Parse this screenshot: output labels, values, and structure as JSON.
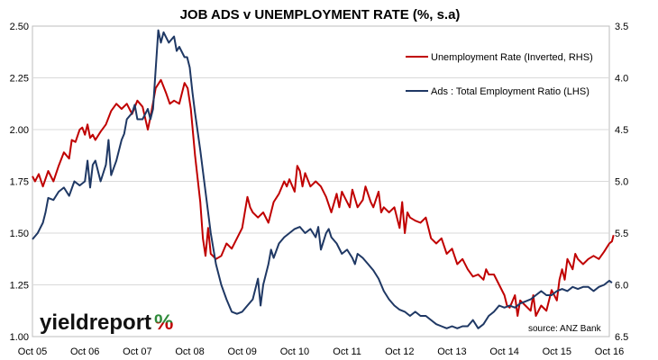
{
  "chart_data": {
    "type": "line",
    "title": "JOB ADS v UNEMPLOYMENT RATE (%, s.a)",
    "categories": [
      "Oct 05",
      "Oct 06",
      "Oct 07",
      "Oct 08",
      "Oct 09",
      "Oct 10",
      "Oct 11",
      "Oct 12",
      "Oct 13",
      "Oct 14",
      "Oct 15",
      "Oct 16"
    ],
    "y_left": {
      "min": 1.0,
      "max": 2.5,
      "ticks": [
        "1.00",
        "1.25",
        "1.50",
        "1.75",
        "2.00",
        "2.25",
        "2.50"
      ]
    },
    "y_right": {
      "min": 3.5,
      "max": 6.5,
      "inverted": true,
      "ticks": [
        "3.5",
        "4.0",
        "4.5",
        "5.0",
        "5.5",
        "6.0",
        "6.5"
      ]
    },
    "grid": "horizontal",
    "legend_position": "top-right",
    "series": [
      {
        "name": "Unemployment Rate (Inverted, RHS)",
        "axis": "right",
        "color": "#c00000",
        "points": [
          [
            0.0,
            4.95
          ],
          [
            0.05,
            5.0
          ],
          [
            0.12,
            4.93
          ],
          [
            0.2,
            5.05
          ],
          [
            0.3,
            4.9
          ],
          [
            0.4,
            5.0
          ],
          [
            0.5,
            4.85
          ],
          [
            0.6,
            4.72
          ],
          [
            0.7,
            4.78
          ],
          [
            0.75,
            4.6
          ],
          [
            0.82,
            4.62
          ],
          [
            0.9,
            4.5
          ],
          [
            0.95,
            4.48
          ],
          [
            1.0,
            4.55
          ],
          [
            1.05,
            4.45
          ],
          [
            1.1,
            4.58
          ],
          [
            1.15,
            4.55
          ],
          [
            1.2,
            4.6
          ],
          [
            1.3,
            4.52
          ],
          [
            1.4,
            4.45
          ],
          [
            1.5,
            4.32
          ],
          [
            1.6,
            4.25
          ],
          [
            1.7,
            4.3
          ],
          [
            1.8,
            4.25
          ],
          [
            1.9,
            4.35
          ],
          [
            2.0,
            4.22
          ],
          [
            2.1,
            4.28
          ],
          [
            2.2,
            4.5
          ],
          [
            2.25,
            4.38
          ],
          [
            2.35,
            4.1
          ],
          [
            2.45,
            4.02
          ],
          [
            2.55,
            4.15
          ],
          [
            2.62,
            4.25
          ],
          [
            2.7,
            4.22
          ],
          [
            2.8,
            4.25
          ],
          [
            2.9,
            4.05
          ],
          [
            2.96,
            4.1
          ],
          [
            3.02,
            4.3
          ],
          [
            3.1,
            4.75
          ],
          [
            3.2,
            5.2
          ],
          [
            3.25,
            5.55
          ],
          [
            3.3,
            5.72
          ],
          [
            3.35,
            5.45
          ],
          [
            3.4,
            5.7
          ],
          [
            3.5,
            5.75
          ],
          [
            3.6,
            5.72
          ],
          [
            3.7,
            5.6
          ],
          [
            3.8,
            5.65
          ],
          [
            3.9,
            5.55
          ],
          [
            4.0,
            5.45
          ],
          [
            4.05,
            5.3
          ],
          [
            4.1,
            5.15
          ],
          [
            4.15,
            5.25
          ],
          [
            4.2,
            5.3
          ],
          [
            4.3,
            5.35
          ],
          [
            4.4,
            5.3
          ],
          [
            4.5,
            5.4
          ],
          [
            4.6,
            5.2
          ],
          [
            4.7,
            5.12
          ],
          [
            4.8,
            5.0
          ],
          [
            4.85,
            5.05
          ],
          [
            4.9,
            4.98
          ],
          [
            5.0,
            5.1
          ],
          [
            5.05,
            4.85
          ],
          [
            5.1,
            4.9
          ],
          [
            5.15,
            5.05
          ],
          [
            5.2,
            4.92
          ],
          [
            5.3,
            5.05
          ],
          [
            5.4,
            5.0
          ],
          [
            5.5,
            5.05
          ],
          [
            5.6,
            5.15
          ],
          [
            5.7,
            5.3
          ],
          [
            5.8,
            5.12
          ],
          [
            5.85,
            5.25
          ],
          [
            5.9,
            5.1
          ],
          [
            5.95,
            5.15
          ],
          [
            6.05,
            5.25
          ],
          [
            6.1,
            5.08
          ],
          [
            6.2,
            5.25
          ],
          [
            6.3,
            5.18
          ],
          [
            6.35,
            5.05
          ],
          [
            6.45,
            5.2
          ],
          [
            6.5,
            5.25
          ],
          [
            6.6,
            5.1
          ],
          [
            6.65,
            5.3
          ],
          [
            6.7,
            5.25
          ],
          [
            6.8,
            5.3
          ],
          [
            6.9,
            5.25
          ],
          [
            7.0,
            5.45
          ],
          [
            7.05,
            5.2
          ],
          [
            7.1,
            5.5
          ],
          [
            7.15,
            5.3
          ],
          [
            7.2,
            5.35
          ],
          [
            7.3,
            5.38
          ],
          [
            7.4,
            5.4
          ],
          [
            7.5,
            5.35
          ],
          [
            7.6,
            5.55
          ],
          [
            7.7,
            5.6
          ],
          [
            7.8,
            5.55
          ],
          [
            7.9,
            5.7
          ],
          [
            8.0,
            5.65
          ],
          [
            8.1,
            5.8
          ],
          [
            8.2,
            5.75
          ],
          [
            8.3,
            5.85
          ],
          [
            8.4,
            5.92
          ],
          [
            8.5,
            5.9
          ],
          [
            8.6,
            5.95
          ],
          [
            8.65,
            5.85
          ],
          [
            8.7,
            5.9
          ],
          [
            8.8,
            5.9
          ],
          [
            8.9,
            6.0
          ],
          [
            9.0,
            6.1
          ],
          [
            9.05,
            6.2
          ],
          [
            9.1,
            6.22
          ],
          [
            9.2,
            6.1
          ],
          [
            9.25,
            6.3
          ],
          [
            9.3,
            6.15
          ],
          [
            9.4,
            6.2
          ],
          [
            9.5,
            6.25
          ],
          [
            9.55,
            6.1
          ],
          [
            9.6,
            6.3
          ],
          [
            9.7,
            6.2
          ],
          [
            9.8,
            6.25
          ],
          [
            9.9,
            6.05
          ],
          [
            10.0,
            6.15
          ],
          [
            10.05,
            5.95
          ],
          [
            10.1,
            5.85
          ],
          [
            10.15,
            5.95
          ],
          [
            10.2,
            5.75
          ],
          [
            10.3,
            5.85
          ],
          [
            10.35,
            5.7
          ],
          [
            10.4,
            5.75
          ],
          [
            10.5,
            5.8
          ],
          [
            10.6,
            5.75
          ],
          [
            10.7,
            5.72
          ],
          [
            10.8,
            5.75
          ],
          [
            10.9,
            5.68
          ],
          [
            11.0,
            5.6
          ],
          [
            11.05,
            5.58
          ],
          [
            11.08,
            5.52
          ]
        ]
      },
      {
        "name": "Ads : Total Employment Ratio (LHS)",
        "axis": "left",
        "color": "#1f3864",
        "points": [
          [
            0.0,
            1.47
          ],
          [
            0.1,
            1.5
          ],
          [
            0.2,
            1.55
          ],
          [
            0.25,
            1.6
          ],
          [
            0.3,
            1.67
          ],
          [
            0.4,
            1.66
          ],
          [
            0.5,
            1.7
          ],
          [
            0.6,
            1.72
          ],
          [
            0.7,
            1.68
          ],
          [
            0.8,
            1.75
          ],
          [
            0.9,
            1.73
          ],
          [
            1.0,
            1.75
          ],
          [
            1.05,
            1.85
          ],
          [
            1.1,
            1.72
          ],
          [
            1.15,
            1.83
          ],
          [
            1.2,
            1.85
          ],
          [
            1.3,
            1.75
          ],
          [
            1.4,
            1.83
          ],
          [
            1.45,
            1.95
          ],
          [
            1.5,
            1.78
          ],
          [
            1.6,
            1.85
          ],
          [
            1.7,
            1.95
          ],
          [
            1.75,
            1.98
          ],
          [
            1.8,
            2.05
          ],
          [
            1.9,
            2.08
          ],
          [
            1.95,
            2.12
          ],
          [
            2.0,
            2.05
          ],
          [
            2.1,
            2.05
          ],
          [
            2.2,
            2.1
          ],
          [
            2.25,
            2.05
          ],
          [
            2.3,
            2.1
          ],
          [
            2.4,
            2.48
          ],
          [
            2.45,
            2.42
          ],
          [
            2.5,
            2.47
          ],
          [
            2.6,
            2.42
          ],
          [
            2.7,
            2.45
          ],
          [
            2.75,
            2.38
          ],
          [
            2.8,
            2.4
          ],
          [
            2.9,
            2.35
          ],
          [
            2.95,
            2.35
          ],
          [
            3.0,
            2.3
          ],
          [
            3.05,
            2.18
          ],
          [
            3.1,
            2.08
          ],
          [
            3.2,
            1.9
          ],
          [
            3.3,
            1.7
          ],
          [
            3.4,
            1.5
          ],
          [
            3.5,
            1.35
          ],
          [
            3.6,
            1.25
          ],
          [
            3.7,
            1.18
          ],
          [
            3.8,
            1.12
          ],
          [
            3.9,
            1.11
          ],
          [
            4.0,
            1.12
          ],
          [
            4.1,
            1.15
          ],
          [
            4.2,
            1.18
          ],
          [
            4.3,
            1.28
          ],
          [
            4.35,
            1.15
          ],
          [
            4.4,
            1.25
          ],
          [
            4.5,
            1.35
          ],
          [
            4.55,
            1.42
          ],
          [
            4.6,
            1.38
          ],
          [
            4.7,
            1.45
          ],
          [
            4.8,
            1.48
          ],
          [
            4.9,
            1.5
          ],
          [
            5.0,
            1.52
          ],
          [
            5.1,
            1.53
          ],
          [
            5.2,
            1.5
          ],
          [
            5.3,
            1.52
          ],
          [
            5.4,
            1.48
          ],
          [
            5.45,
            1.53
          ],
          [
            5.5,
            1.42
          ],
          [
            5.55,
            1.46
          ],
          [
            5.6,
            1.5
          ],
          [
            5.65,
            1.52
          ],
          [
            5.7,
            1.48
          ],
          [
            5.8,
            1.45
          ],
          [
            5.9,
            1.4
          ],
          [
            6.0,
            1.42
          ],
          [
            6.1,
            1.38
          ],
          [
            6.15,
            1.35
          ],
          [
            6.2,
            1.4
          ],
          [
            6.3,
            1.38
          ],
          [
            6.4,
            1.35
          ],
          [
            6.5,
            1.32
          ],
          [
            6.6,
            1.28
          ],
          [
            6.7,
            1.22
          ],
          [
            6.8,
            1.18
          ],
          [
            6.9,
            1.15
          ],
          [
            7.0,
            1.13
          ],
          [
            7.1,
            1.12
          ],
          [
            7.2,
            1.1
          ],
          [
            7.3,
            1.12
          ],
          [
            7.4,
            1.1
          ],
          [
            7.5,
            1.1
          ],
          [
            7.6,
            1.08
          ],
          [
            7.7,
            1.06
          ],
          [
            7.8,
            1.05
          ],
          [
            7.9,
            1.04
          ],
          [
            8.0,
            1.05
          ],
          [
            8.1,
            1.04
          ],
          [
            8.2,
            1.05
          ],
          [
            8.3,
            1.05
          ],
          [
            8.4,
            1.08
          ],
          [
            8.5,
            1.04
          ],
          [
            8.6,
            1.06
          ],
          [
            8.7,
            1.1
          ],
          [
            8.8,
            1.12
          ],
          [
            8.9,
            1.15
          ],
          [
            9.0,
            1.14
          ],
          [
            9.1,
            1.15
          ],
          [
            9.2,
            1.14
          ],
          [
            9.3,
            1.16
          ],
          [
            9.4,
            1.17
          ],
          [
            9.5,
            1.18
          ],
          [
            9.6,
            1.2
          ],
          [
            9.7,
            1.22
          ],
          [
            9.8,
            1.2
          ],
          [
            9.9,
            1.2
          ],
          [
            10.0,
            1.22
          ],
          [
            10.1,
            1.23
          ],
          [
            10.2,
            1.22
          ],
          [
            10.3,
            1.24
          ],
          [
            10.4,
            1.23
          ],
          [
            10.5,
            1.24
          ],
          [
            10.6,
            1.24
          ],
          [
            10.7,
            1.22
          ],
          [
            10.8,
            1.24
          ],
          [
            10.9,
            1.25
          ],
          [
            11.0,
            1.27
          ],
          [
            11.05,
            1.26
          ]
        ]
      }
    ],
    "source": "source: ANZ Bank"
  },
  "logo": {
    "word": "yieldreport",
    "symbol": "%",
    "symbol_color_top": "#2e8b3a",
    "symbol_color_bottom": "#c00000"
  }
}
